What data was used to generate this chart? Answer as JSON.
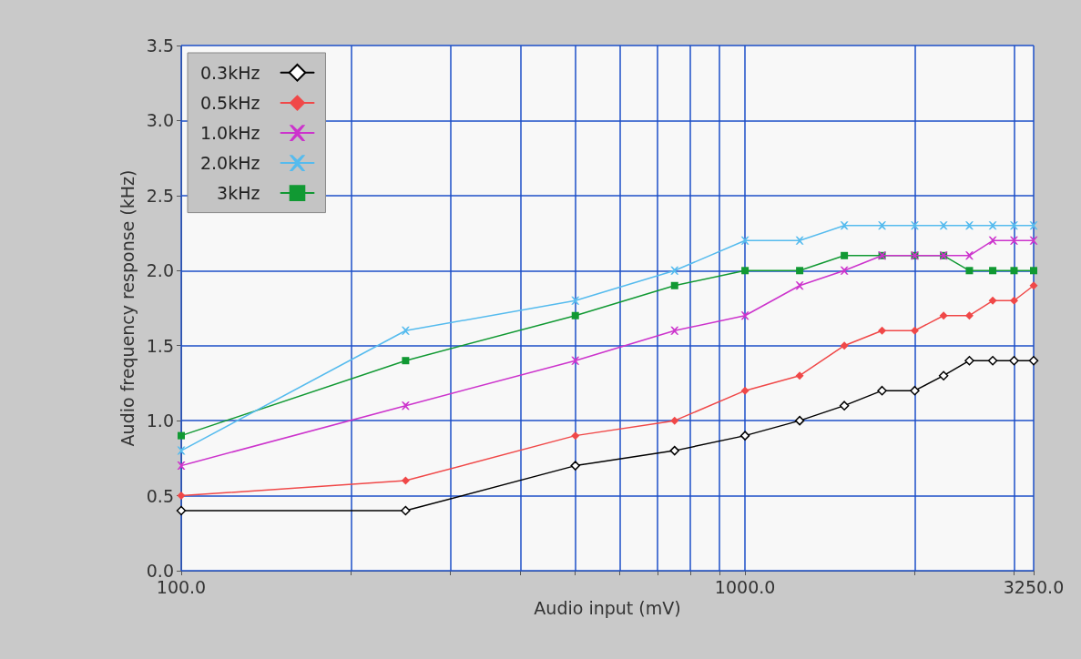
{
  "chart_data": {
    "type": "line",
    "xlabel": "Audio input (mV)",
    "ylabel": "Audio frequency response (kHz)",
    "x": [
      100,
      250,
      500,
      750,
      1000,
      1250,
      1500,
      1750,
      2000,
      2250,
      2500,
      2750,
      3000,
      3250
    ],
    "series": [
      {
        "name": "0.3kHz",
        "color": "#000000",
        "marker": "diamond",
        "values": [
          0.4,
          0.4,
          0.7,
          0.8,
          0.9,
          1.0,
          1.1,
          1.2,
          1.2,
          1.3,
          1.4,
          1.4,
          1.4,
          1.4
        ]
      },
      {
        "name": "0.5kHz",
        "color": "#f04848",
        "marker": "diamond",
        "values": [
          0.5,
          0.6,
          0.9,
          1.0,
          1.2,
          1.3,
          1.5,
          1.6,
          1.6,
          1.7,
          1.7,
          1.8,
          1.8,
          1.9
        ]
      },
      {
        "name": "1.0kHz",
        "color": "#cc33cc",
        "marker": "cross",
        "values": [
          0.7,
          1.1,
          1.4,
          1.6,
          1.7,
          1.9,
          2.0,
          2.1,
          2.1,
          2.1,
          2.1,
          2.2,
          2.2,
          2.2
        ]
      },
      {
        "name": "2.0kHz",
        "color": "#55bbee",
        "marker": "cross",
        "values": [
          0.8,
          1.6,
          1.8,
          2.0,
          2.2,
          2.2,
          2.3,
          2.3,
          2.3,
          2.3,
          2.3,
          2.3,
          2.3,
          2.3
        ]
      },
      {
        "name": "3kHz",
        "color": "#119933",
        "marker": "square",
        "values": [
          0.9,
          1.4,
          1.7,
          1.9,
          2.0,
          2.0,
          2.1,
          2.1,
          2.1,
          2.1,
          2.0,
          2.0,
          2.0,
          2.0
        ]
      }
    ],
    "log": "x",
    "xlim": [
      100,
      3250
    ],
    "xticks": [
      {
        "value": 100,
        "label": "100.0"
      },
      {
        "value": 200,
        "label": null
      },
      {
        "value": 300,
        "label": null
      },
      {
        "value": 400,
        "label": null
      },
      {
        "value": 500,
        "label": null
      },
      {
        "value": 600,
        "label": null
      },
      {
        "value": 700,
        "label": null
      },
      {
        "value": 800,
        "label": null
      },
      {
        "value": 900,
        "label": null
      },
      {
        "value": 1000,
        "label": "1000.0"
      },
      {
        "value": 2000,
        "label": null
      },
      {
        "value": 3000,
        "label": null
      },
      {
        "value": 3250,
        "label": "3250.0"
      }
    ],
    "ylim": [
      0,
      3.5
    ],
    "yticks": [
      {
        "value": 0,
        "label": "0.0"
      },
      {
        "value": 0.5,
        "label": "0.5"
      },
      {
        "value": 1,
        "label": "1.0"
      },
      {
        "value": 1.5,
        "label": "1.5"
      },
      {
        "value": 2,
        "label": "2.0"
      },
      {
        "value": 2.5,
        "label": "2.5"
      },
      {
        "value": 3,
        "label": "3.0"
      },
      {
        "value": 3.5,
        "label": "3.5"
      }
    ],
    "grid": true,
    "legend": "top left",
    "line_style": "solid"
  }
}
